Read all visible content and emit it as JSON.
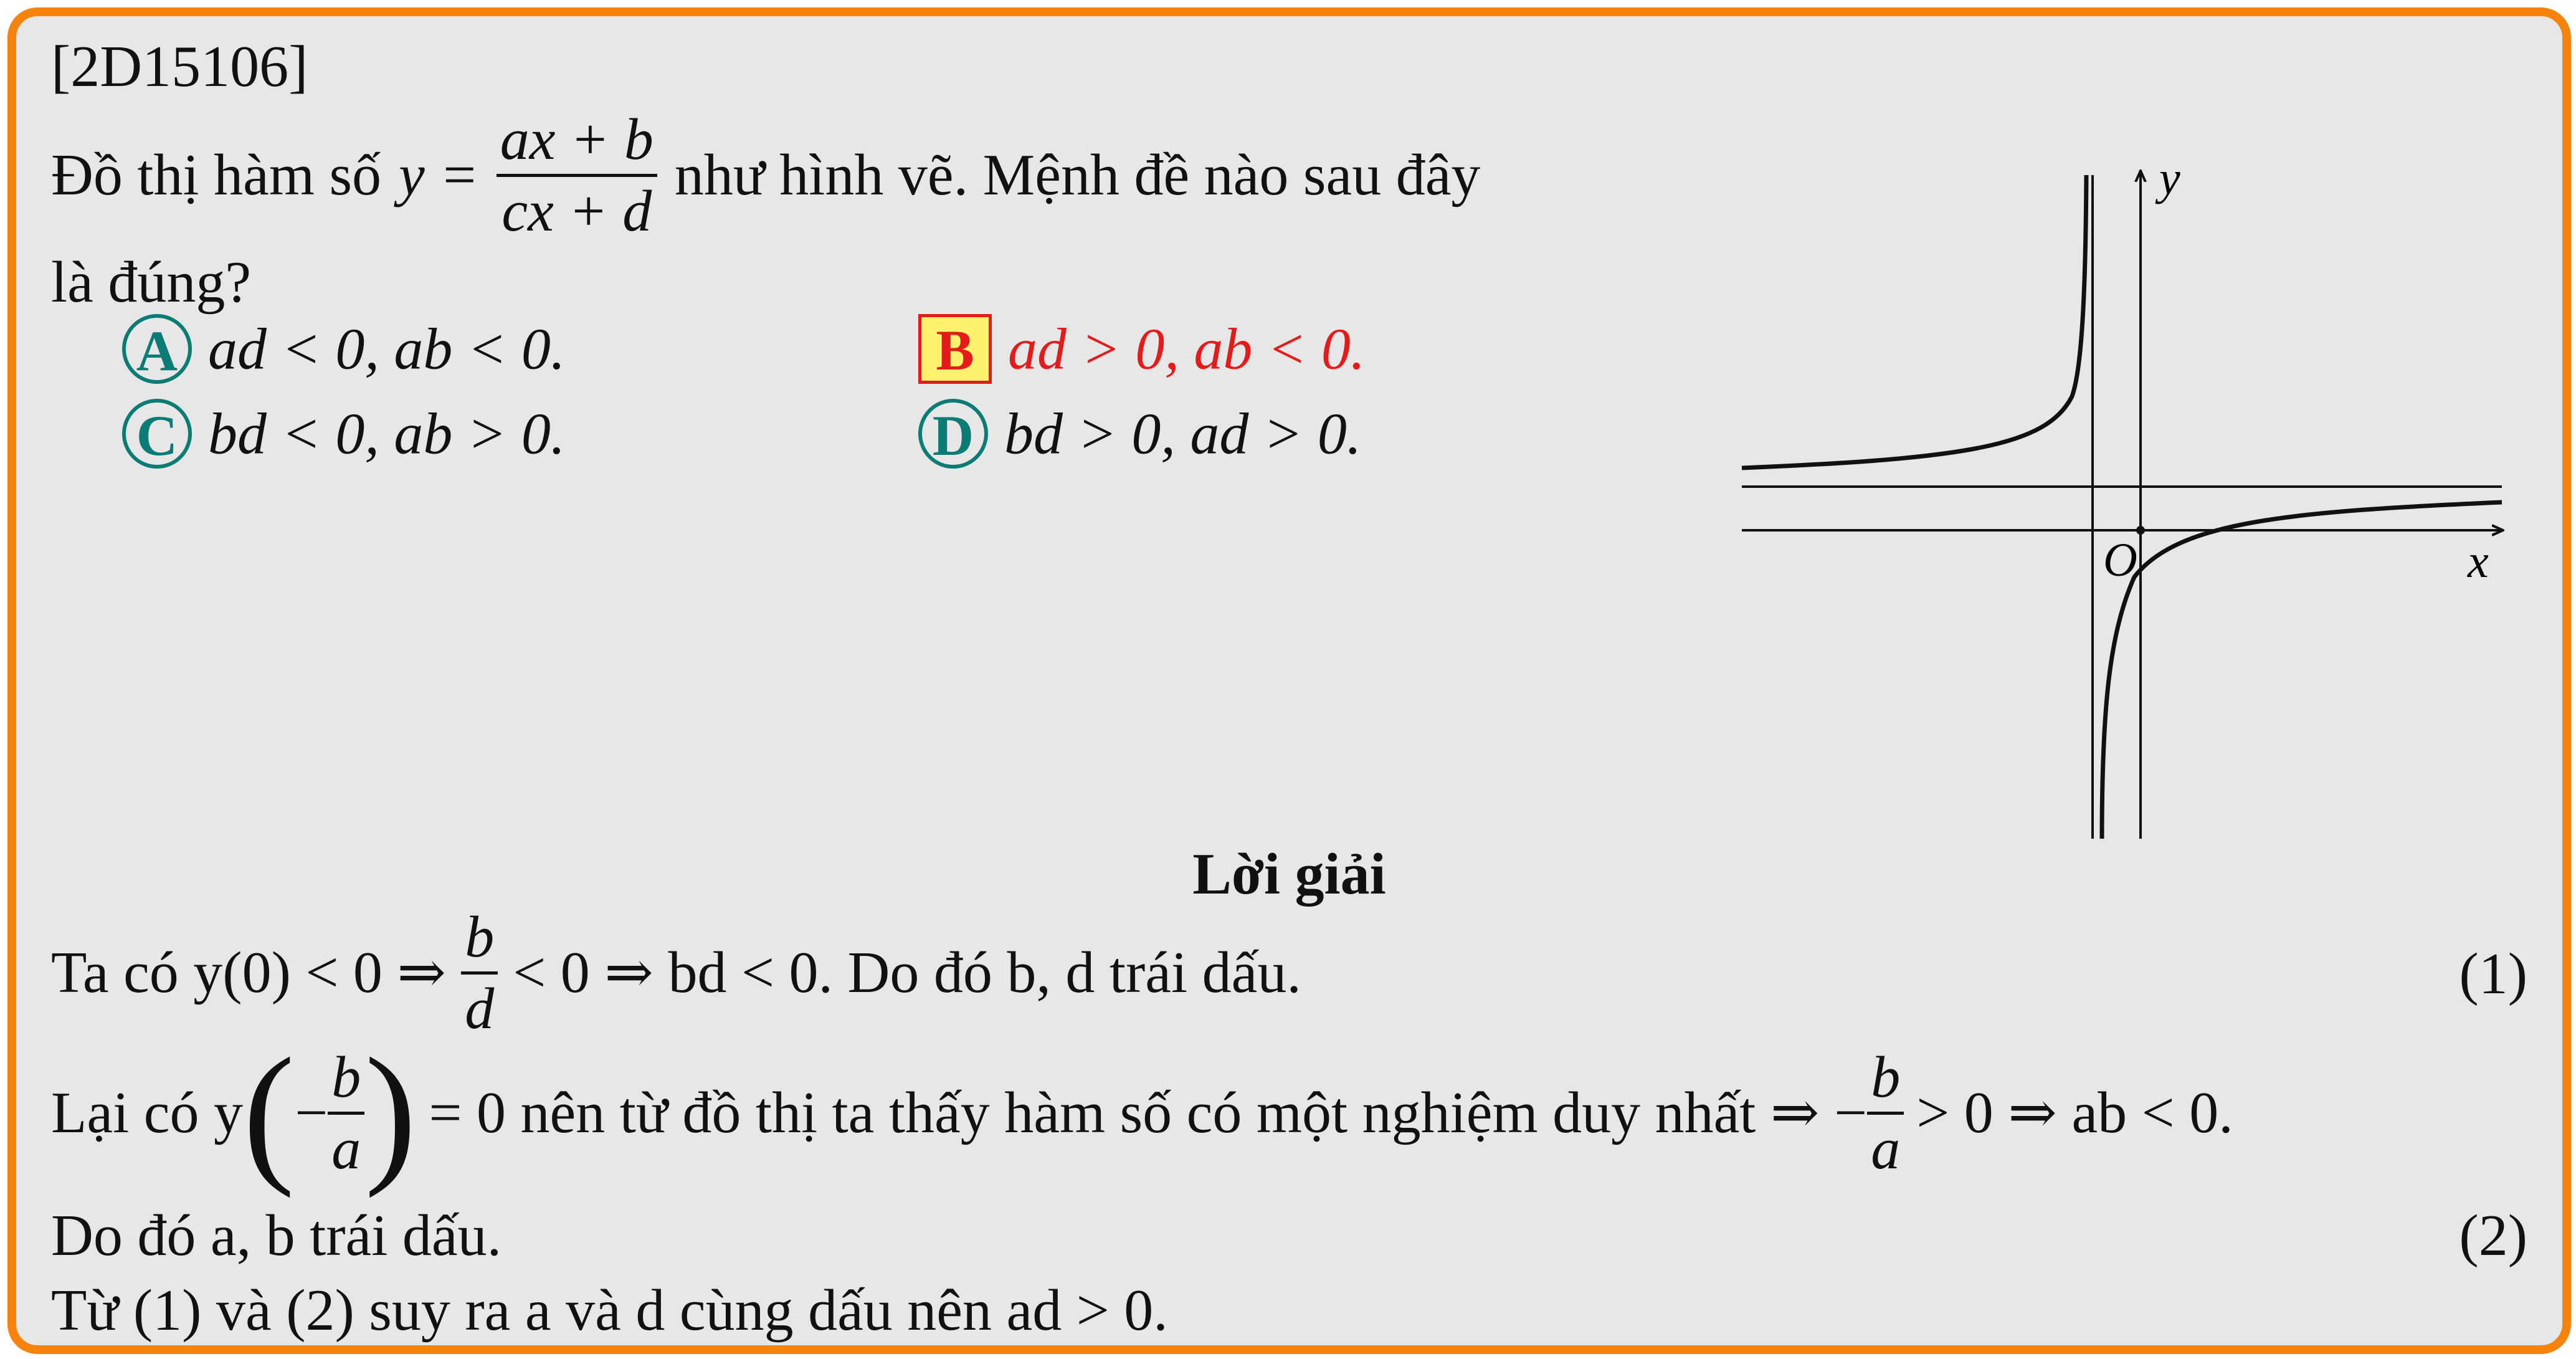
{
  "question": {
    "id": "[2D15106]",
    "line1_prefix": "Đồ thị hàm số",
    "y_eq": "y =",
    "frac_num": "ax + b",
    "frac_den": "cx + d",
    "line1_suffix": "như hình vẽ. Mệnh đề nào sau đây",
    "line2": "là đúng?"
  },
  "options": [
    {
      "label": "A",
      "text": "ad < 0, ab < 0.",
      "selected": false
    },
    {
      "label": "B",
      "text": "ad > 0, ab < 0.",
      "selected": true
    },
    {
      "label": "C",
      "text": "bd < 0, ab > 0.",
      "selected": false
    },
    {
      "label": "D",
      "text": "bd > 0, ad > 0.",
      "selected": false
    }
  ],
  "graph": {
    "x_label": "x",
    "y_label": "y",
    "origin_label": "O"
  },
  "solution": {
    "heading": "Lời giải",
    "l1_pre": "Ta có y(0) < 0 ⇒",
    "l1_frac_num": "b",
    "l1_frac_den": "d",
    "l1_post": "< 0 ⇒ bd < 0. Do đó b, d trái dấu.",
    "l1_tag": "(1)",
    "l2_pre": "Lại có y",
    "l2_minus": "−",
    "l2_frac_num": "b",
    "l2_frac_den": "a",
    "l2_mid": "= 0 nên từ đồ thị ta thấy hàm số có một nghiệm duy nhất ⇒ −",
    "l2_frac2_num": "b",
    "l2_frac2_den": "a",
    "l2_post": "> 0 ⇒ ab < 0.",
    "l3": "Do đó a, b trái dấu.",
    "l3_tag": "(2)",
    "l4": "Từ (1) và (2) suy ra a và d cùng dấu nên ad > 0."
  },
  "colors": {
    "border": "#f7830f",
    "background": "#e7e7e7",
    "option_label": "#0b7b76",
    "correct": "#e31b1b",
    "correct_bg": "#fff06e"
  }
}
